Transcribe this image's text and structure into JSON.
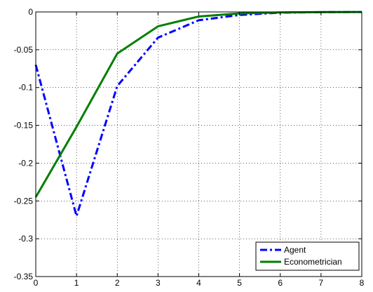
{
  "chart_data": {
    "type": "line",
    "x": [
      0,
      1,
      2,
      3,
      4,
      5,
      6,
      7,
      8
    ],
    "series": [
      {
        "name": "Agent",
        "values": [
          -0.07,
          -0.27,
          -0.098,
          -0.034,
          -0.011,
          -0.004,
          -0.001,
          -0.0003,
          -0.0001
        ],
        "color": "#0000ff",
        "style": "dash-dot"
      },
      {
        "name": "Econometrician",
        "values": [
          -0.245,
          -0.152,
          -0.055,
          -0.019,
          -0.006,
          -0.002,
          -0.0007,
          -0.0002,
          -0.0001
        ],
        "color": "#007f00",
        "style": "solid"
      }
    ],
    "xlim": [
      0,
      8
    ],
    "ylim": [
      -0.35,
      0
    ],
    "x_ticks": [
      "0",
      "1",
      "2",
      "3",
      "4",
      "5",
      "6",
      "7",
      "8"
    ],
    "y_ticks": [
      "0",
      "-0.05",
      "-0.1",
      "-0.15",
      "-0.2",
      "-0.25",
      "-0.3",
      "-0.35"
    ],
    "grid": true,
    "legend_position": "bottom-right"
  }
}
